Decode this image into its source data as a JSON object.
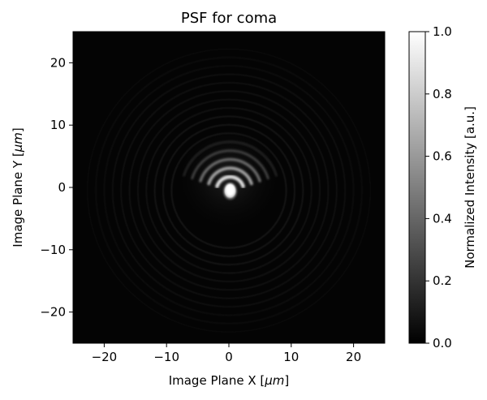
{
  "chart_data": {
    "type": "heatmap",
    "title": "PSF for coma",
    "xlabel": "Image Plane X [",
    "xlabel_unit": "μm",
    "xlabel_close": "]",
    "ylabel": "Image Plane Y [",
    "ylabel_unit": "μm",
    "ylabel_close": "]",
    "xlim": [
      -25,
      25
    ],
    "ylim": [
      -25,
      25
    ],
    "xticks": [
      -20,
      -10,
      0,
      10,
      20
    ],
    "yticks": [
      -20,
      -10,
      0,
      10,
      20
    ],
    "xtick_labels": [
      "−20",
      "−10",
      "0",
      "10",
      "20"
    ],
    "ytick_labels": [
      "−20",
      "−10",
      "0",
      "10",
      "20"
    ],
    "colormap": "gray",
    "colorbar": {
      "label": "Normalized Intensity [a.u.]",
      "range": [
        0.0,
        1.0
      ],
      "ticks": [
        0.0,
        0.2,
        0.4,
        0.6,
        0.8,
        1.0
      ],
      "tick_labels": [
        "0.0",
        "0.2",
        "0.4",
        "0.6",
        "0.8",
        "1.0"
      ]
    },
    "psf": {
      "peak_center": [
        0.2,
        -0.6
      ],
      "peak_intensity": 1.0,
      "arcs": [
        {
          "center_y": -0.5,
          "radius": 2.2,
          "intensity": 0.85
        },
        {
          "center_y": -0.5,
          "radius": 3.6,
          "intensity": 0.62
        },
        {
          "center_y": -0.5,
          "radius": 5.0,
          "intensity": 0.42
        },
        {
          "center_y": -0.5,
          "radius": 6.4,
          "intensity": 0.26
        },
        {
          "center_y": -0.5,
          "radius": 7.8,
          "intensity": 0.15
        }
      ]
    }
  }
}
